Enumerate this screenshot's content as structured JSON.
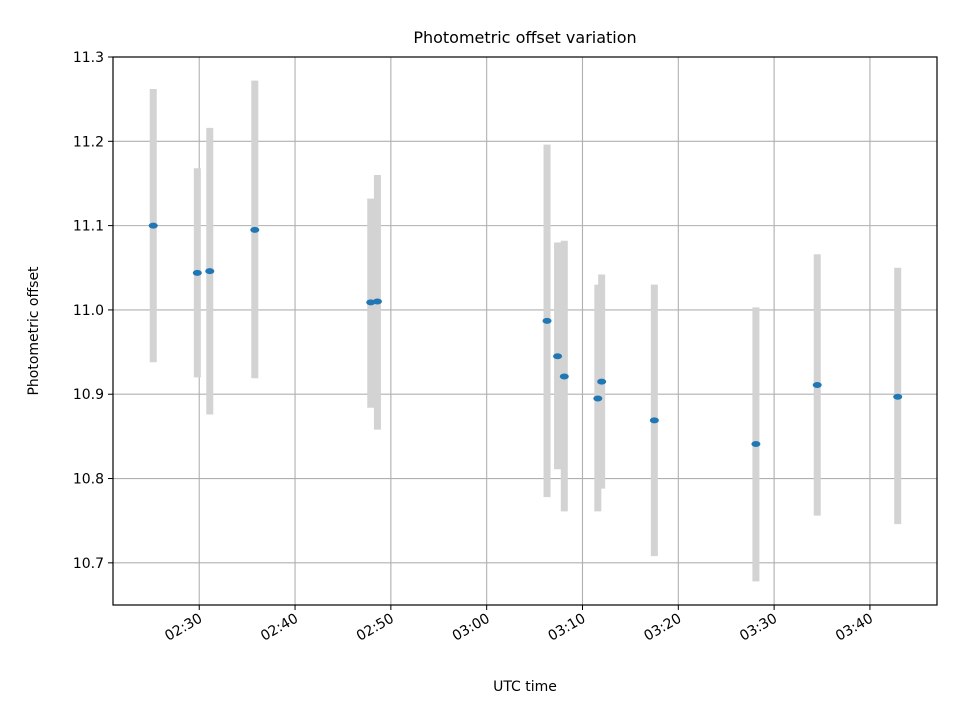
{
  "chart_data": {
    "type": "scatter",
    "title": "Photometric offset variation",
    "xlabel": "UTC time",
    "ylabel": "Photometric offset",
    "x_tick_labels": [
      "02:30",
      "02:40",
      "02:50",
      "03:00",
      "03:10",
      "03:20",
      "03:30",
      "03:40"
    ],
    "x_ticks_minutes": [
      150,
      160,
      170,
      180,
      190,
      200,
      210,
      220
    ],
    "y_tick_labels": [
      "10.7",
      "10.8",
      "10.9",
      "11.0",
      "11.1",
      "11.2",
      "11.3"
    ],
    "y_ticks": [
      10.7,
      10.8,
      10.9,
      11.0,
      11.1,
      11.2,
      11.3
    ],
    "xlim": [
      "02:21",
      "03:47"
    ],
    "ylim": [
      10.65,
      11.3
    ],
    "grid": true,
    "colors": {
      "marker": "#1f77b4",
      "errorbar": "#d3d3d3",
      "grid": "#b0b0b0"
    },
    "points": [
      {
        "time": "02:25:12",
        "y": 11.1,
        "low": 10.938,
        "high": 11.262
      },
      {
        "time": "02:29:48",
        "y": 11.044,
        "low": 10.92,
        "high": 11.168
      },
      {
        "time": "02:31:06",
        "y": 11.046,
        "low": 10.876,
        "high": 11.216
      },
      {
        "time": "02:35:48",
        "y": 11.095,
        "low": 10.919,
        "high": 11.272
      },
      {
        "time": "02:47:54",
        "y": 11.009,
        "low": 10.884,
        "high": 11.132
      },
      {
        "time": "02:48:36",
        "y": 11.01,
        "low": 10.858,
        "high": 11.16
      },
      {
        "time": "03:06:18",
        "y": 10.987,
        "low": 10.778,
        "high": 11.196
      },
      {
        "time": "03:07:24",
        "y": 10.945,
        "low": 10.811,
        "high": 11.08
      },
      {
        "time": "03:08:06",
        "y": 10.921,
        "low": 10.761,
        "high": 11.082
      },
      {
        "time": "03:11:36",
        "y": 10.895,
        "low": 10.761,
        "high": 11.03
      },
      {
        "time": "03:12:00",
        "y": 10.915,
        "low": 10.788,
        "high": 11.042
      },
      {
        "time": "03:17:30",
        "y": 10.869,
        "low": 10.708,
        "high": 11.03
      },
      {
        "time": "03:28:06",
        "y": 10.841,
        "low": 10.678,
        "high": 11.003
      },
      {
        "time": "03:34:30",
        "y": 10.911,
        "low": 10.756,
        "high": 11.066
      },
      {
        "time": "03:42:54",
        "y": 10.897,
        "low": 10.746,
        "high": 11.05
      }
    ]
  }
}
